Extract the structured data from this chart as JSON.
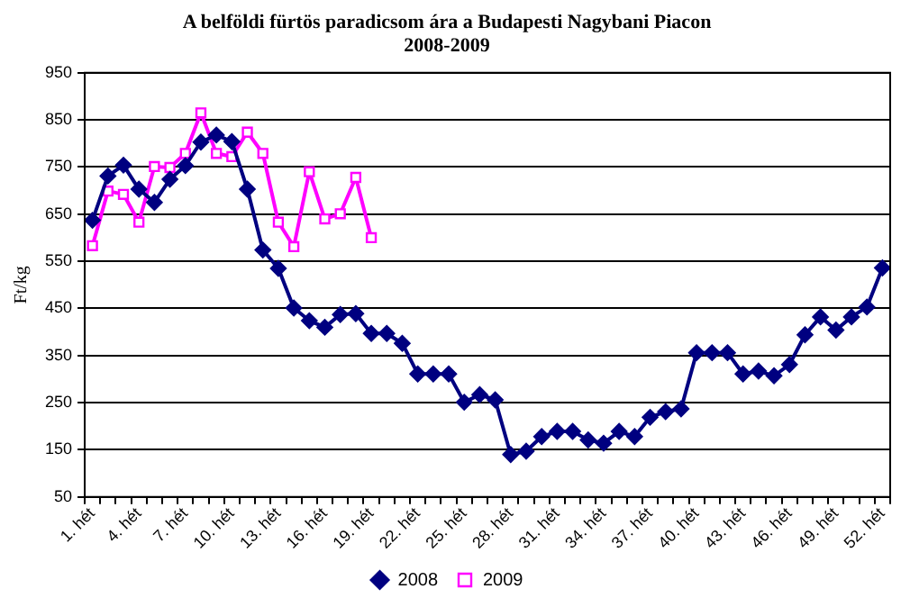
{
  "chart_data": {
    "type": "line",
    "title": "A belföldi fürtös paradicsom ára a Budapesti Nagybani Piacon",
    "subtitle": "2008-2009",
    "ylabel": "Ft/kg",
    "categories": [
      "1. hét",
      null,
      null,
      "4. hét",
      null,
      null,
      "7. hét",
      null,
      null,
      "10. hét",
      null,
      null,
      "13. hét",
      null,
      null,
      "16. hét",
      null,
      null,
      "19. hét",
      null,
      null,
      "22. hét",
      null,
      null,
      "25. hét",
      null,
      null,
      "28. hét",
      null,
      null,
      "31. hét",
      null,
      null,
      "34. hét",
      null,
      null,
      "37. hét",
      null,
      null,
      "40. hét",
      null,
      null,
      "43. hét",
      null,
      null,
      "46. hét",
      null,
      null,
      "49. hét",
      null,
      null,
      "52. hét"
    ],
    "series": [
      {
        "name": "2008",
        "color": "#000080",
        "marker": "diamond",
        "values": [
          637,
          731,
          754,
          703,
          675,
          724,
          753,
          803,
          818,
          804,
          703,
          574,
          535,
          451,
          424,
          410,
          437,
          439,
          397,
          397,
          376,
          311,
          311,
          311,
          251,
          267,
          256,
          140,
          147,
          178,
          189,
          189,
          171,
          164,
          189,
          178,
          219,
          231,
          237,
          356,
          356,
          356,
          311,
          317,
          307,
          331,
          394,
          432,
          404,
          432,
          453,
          536
        ]
      },
      {
        "name": "2009",
        "color": "#ff00ff",
        "marker": "square",
        "values": [
          583,
          699,
          692,
          633,
          751,
          749,
          779,
          865,
          779,
          772,
          824,
          779,
          633,
          581,
          740,
          640,
          651,
          728,
          600,
          null,
          null,
          null,
          null,
          null,
          null,
          null,
          null,
          null,
          null,
          null,
          null,
          null,
          null,
          null,
          null,
          null,
          null,
          null,
          null,
          null,
          null,
          null,
          null,
          null,
          null,
          null,
          null,
          null,
          null,
          null,
          null,
          null
        ]
      }
    ],
    "ylim": [
      50,
      950
    ],
    "yticks": [
      50,
      150,
      250,
      350,
      450,
      550,
      650,
      750,
      850,
      950
    ],
    "grid": "y",
    "legend": "bottom",
    "line_style": "solid"
  }
}
